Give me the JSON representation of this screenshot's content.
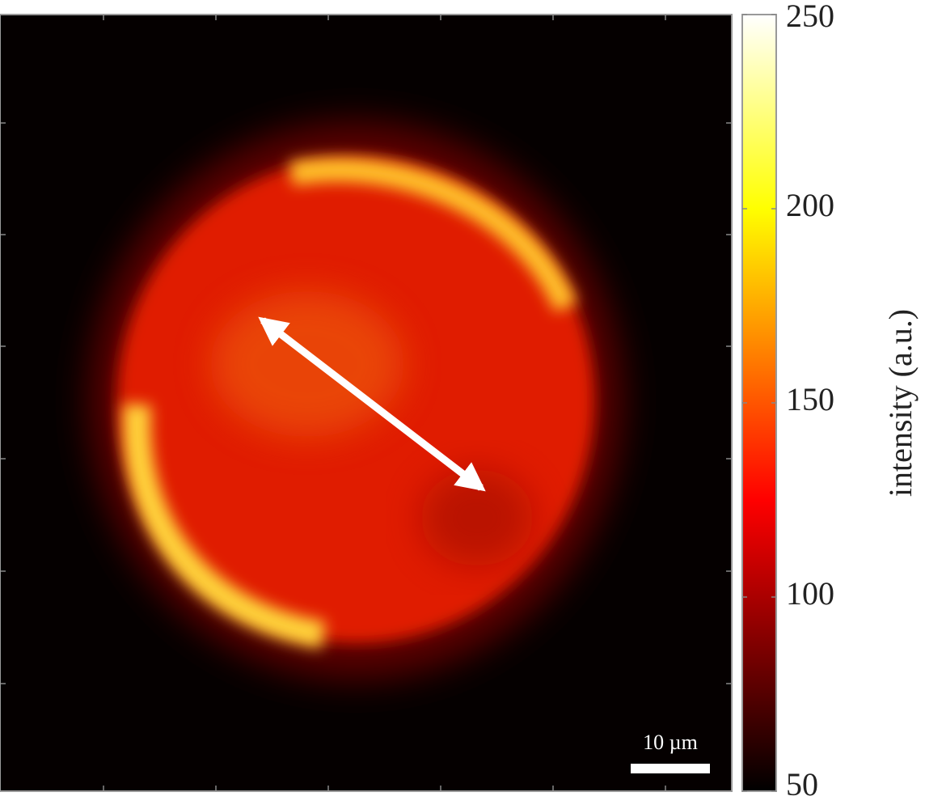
{
  "chart_data": {
    "type": "heatmap",
    "colormap": "hot",
    "clim": [
      50,
      250
    ],
    "cticks": [
      50,
      100,
      150,
      200,
      250
    ],
    "colorbar_label": "intensity (a.u.)",
    "scalebar_label": "10 µm"
  }
}
